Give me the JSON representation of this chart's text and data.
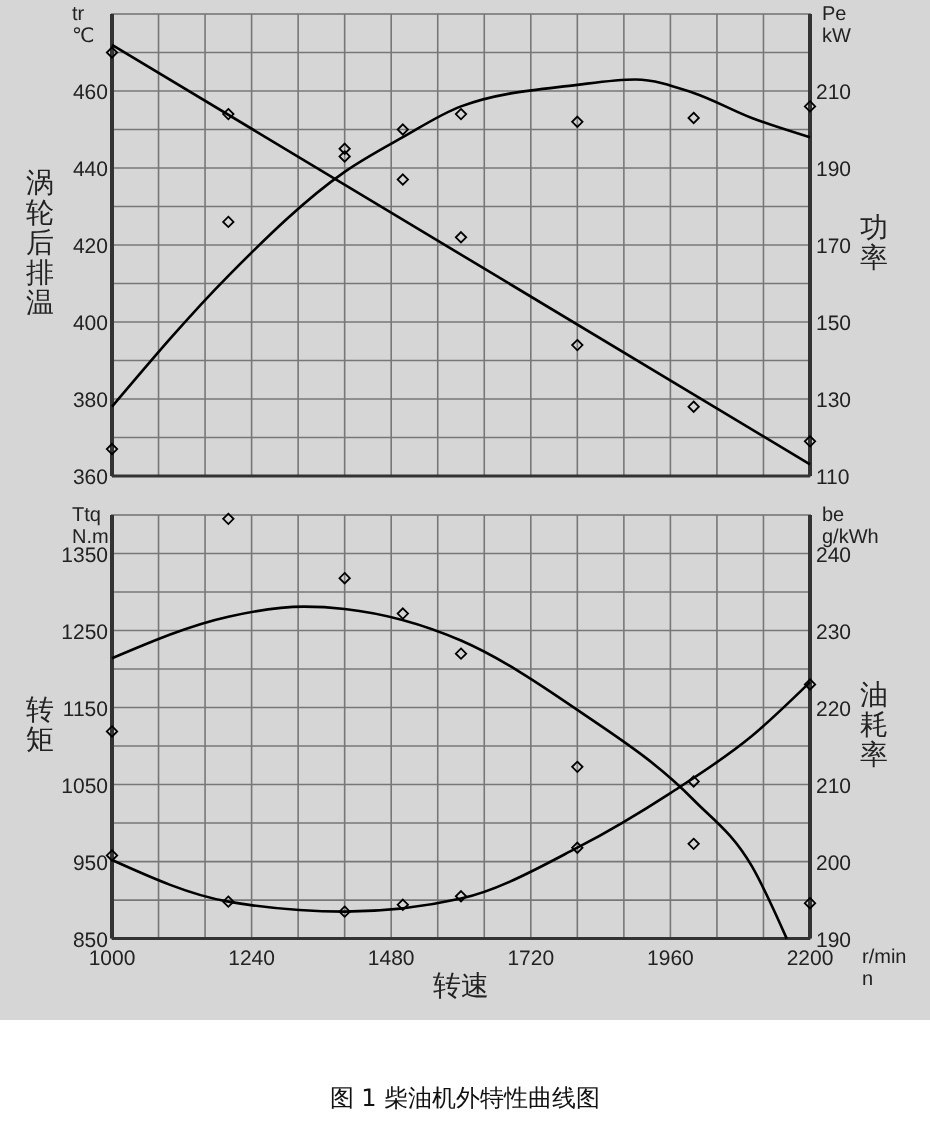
{
  "chart_data": [
    {
      "type": "line",
      "ylabel": "涡轮后排温",
      "y2label": "功率",
      "annotations": [
        "tr ℃",
        "Pe kW"
      ],
      "xlim": [
        1000,
        2200
      ],
      "xticks": [
        1000,
        {
          "value": 1080,
          "label": null
        },
        {
          "value": 1160,
          "label": null
        },
        {
          "value": 1240,
          "label": null
        },
        {
          "value": 1320,
          "label": null
        },
        {
          "value": 1400,
          "label": null
        },
        {
          "value": 1480,
          "label": null
        },
        {
          "value": 1560,
          "label": null
        },
        {
          "value": 1640,
          "label": null
        },
        {
          "value": 1720,
          "label": null
        },
        {
          "value": 1800,
          "label": null
        },
        {
          "value": 1880,
          "label": null
        },
        {
          "value": 1960,
          "label": null
        },
        {
          "value": 2040,
          "label": null
        },
        {
          "value": 2120,
          "label": null
        },
        2200
      ],
      "ylim": [
        360,
        480
      ],
      "yticks": [
        360,
        {
          "value": 370,
          "label": null
        },
        380,
        {
          "value": 390,
          "label": null
        },
        400,
        {
          "value": 410,
          "label": null
        },
        420,
        {
          "value": 430,
          "label": null
        },
        440,
        {
          "value": 450,
          "label": null
        },
        460,
        {
          "value": 470,
          "label": null
        }
      ],
      "y2lim": [
        110,
        230
      ],
      "y2ticks": [
        110,
        130,
        150,
        170,
        190,
        210
      ],
      "tick_labels": "y",
      "grid": true,
      "series": [
        {
          "type": "scatter",
          "marker": "diamond",
          "color": "#000000",
          "x": [
            1000,
            1200,
            1400,
            1500,
            1600,
            1800,
            2000,
            2200
          ],
          "values": [
            470,
            454,
            445,
            437,
            422,
            394,
            378,
            369
          ]
        },
        {
          "color": "#000000",
          "x": [
            1000,
            2200
          ],
          "values": [
            472,
            363
          ]
        },
        {
          "type": "scatter",
          "axis": "y2",
          "marker": "diamond",
          "color": "#000000",
          "x": [
            1000,
            1200,
            1400,
            1500,
            1600,
            1800,
            2000,
            2200
          ],
          "values": [
            117,
            176,
            193,
            200,
            204,
            202,
            203,
            206
          ]
        },
        {
          "axis": "y2",
          "color": "#000000",
          "x": [
            1000,
            1200,
            1400,
            1500,
            1600,
            1800,
            1900,
            2000,
            2100,
            2200
          ],
          "values": [
            128,
            162,
            189,
            198,
            206,
            211.6,
            213,
            209.5,
            203,
            198
          ]
        }
      ]
    },
    {
      "type": "line",
      "xlabel": "转速",
      "ylabel": "转矩",
      "y2label": "油耗率",
      "annotations": [
        "Ttq N.m",
        "be g/kWh",
        "r/min n",
        "图 1 柴油机外特性曲线图"
      ],
      "xlim": [
        1000,
        2200
      ],
      "xticks": [
        1000,
        {
          "value": 1080,
          "label": null
        },
        {
          "value": 1160,
          "label": null
        },
        1240,
        {
          "value": 1320,
          "label": null
        },
        {
          "value": 1400,
          "label": null
        },
        1480,
        {
          "value": 1560,
          "label": null
        },
        {
          "value": 1640,
          "label": null
        },
        1720,
        {
          "value": 1800,
          "label": null
        },
        {
          "value": 1880,
          "label": null
        },
        1960,
        {
          "value": 2040,
          "label": null
        },
        {
          "value": 2120,
          "label": null
        },
        2200
      ],
      "ylim": [
        850,
        1400
      ],
      "yticks": [
        {
          "value": 850,
          "label": "850"
        },
        {
          "value": 900,
          "label": null
        },
        950,
        {
          "value": 1000,
          "label": null
        },
        1050,
        {
          "value": 1100,
          "label": null
        },
        1150,
        {
          "value": 1200,
          "label": null
        },
        1250,
        {
          "value": 1300,
          "label": null
        },
        1350
      ],
      "y2lim": [
        190,
        245
      ],
      "y2ticks": [
        190,
        200,
        210,
        220,
        230,
        240
      ],
      "grid": true,
      "series": [
        {
          "type": "scatter",
          "marker": "diamond",
          "color": "#000000",
          "x": [
            1000,
            1200,
            1400,
            1500,
            1600,
            1800,
            2000,
            2200
          ],
          "values": [
            1119,
            1395,
            1318,
            1272,
            1220,
            1073,
            973,
            896
          ]
        },
        {
          "color": "#000000",
          "x": [
            1000,
            1200,
            1330,
            1400,
            1600,
            1800,
            2000,
            2100,
            2160
          ],
          "values": [
            1214,
            1268,
            1281,
            1278,
            1237,
            1147,
            1030,
            944,
            850
          ]
        },
        {
          "type": "scatter",
          "axis": "y2",
          "marker": "diamond",
          "color": "#000000",
          "x": [
            1000,
            1200,
            1400,
            1500,
            1600,
            1800,
            2000,
            2200
          ],
          "values": [
            200.8,
            194.8,
            193.5,
            194.4,
            195.5,
            201.8,
            210.4,
            223
          ]
        },
        {
          "axis": "y2",
          "color": "#000000",
          "x": [
            1000,
            1200,
            1400,
            1600,
            1800,
            1960,
            2100,
            2200
          ],
          "values": [
            200.2,
            194.8,
            193.5,
            195.2,
            201.8,
            208.9,
            216.3,
            223.3
          ]
        }
      ]
    }
  ]
}
